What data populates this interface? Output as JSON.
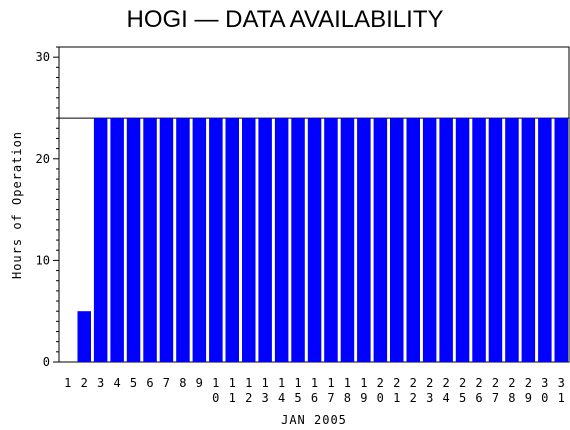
{
  "chart_data": {
    "type": "bar",
    "title": "HOGI — DATA AVAILABILITY",
    "xlabel": "JAN 2005",
    "ylabel": "Hours of Operation",
    "ylim": [
      0,
      31
    ],
    "yticks": [
      0,
      10,
      20,
      30
    ],
    "reference_line": 24,
    "bar_color": "#0000ff",
    "categories": [
      "1",
      "2",
      "3",
      "4",
      "5",
      "6",
      "7",
      "8",
      "9",
      "10",
      "11",
      "12",
      "13",
      "14",
      "15",
      "16",
      "17",
      "18",
      "19",
      "20",
      "21",
      "22",
      "23",
      "24",
      "25",
      "26",
      "27",
      "28",
      "29",
      "30",
      "31"
    ],
    "values": [
      0,
      5,
      24,
      24,
      24,
      24,
      24,
      24,
      24,
      24,
      24,
      24,
      24,
      24,
      24,
      24,
      24,
      24,
      24,
      24,
      24,
      24,
      24,
      24,
      24,
      24,
      24,
      24,
      24,
      24,
      24
    ]
  }
}
